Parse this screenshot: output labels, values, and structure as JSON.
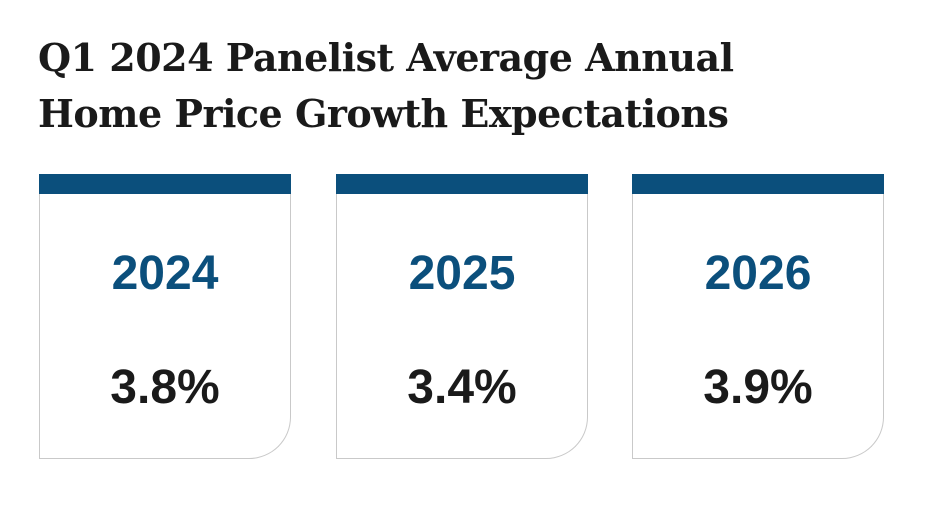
{
  "title": {
    "line1": "Q1 2024 Panelist Average Annual",
    "line2": "Home Price Growth Expectations"
  },
  "colors": {
    "accent": "#0b4f7c",
    "text": "#1a1a1a",
    "border": "#c9c9c9"
  },
  "cards": [
    {
      "year": "2024",
      "value": "3.8%"
    },
    {
      "year": "2025",
      "value": "3.4%"
    },
    {
      "year": "2026",
      "value": "3.9%"
    }
  ]
}
